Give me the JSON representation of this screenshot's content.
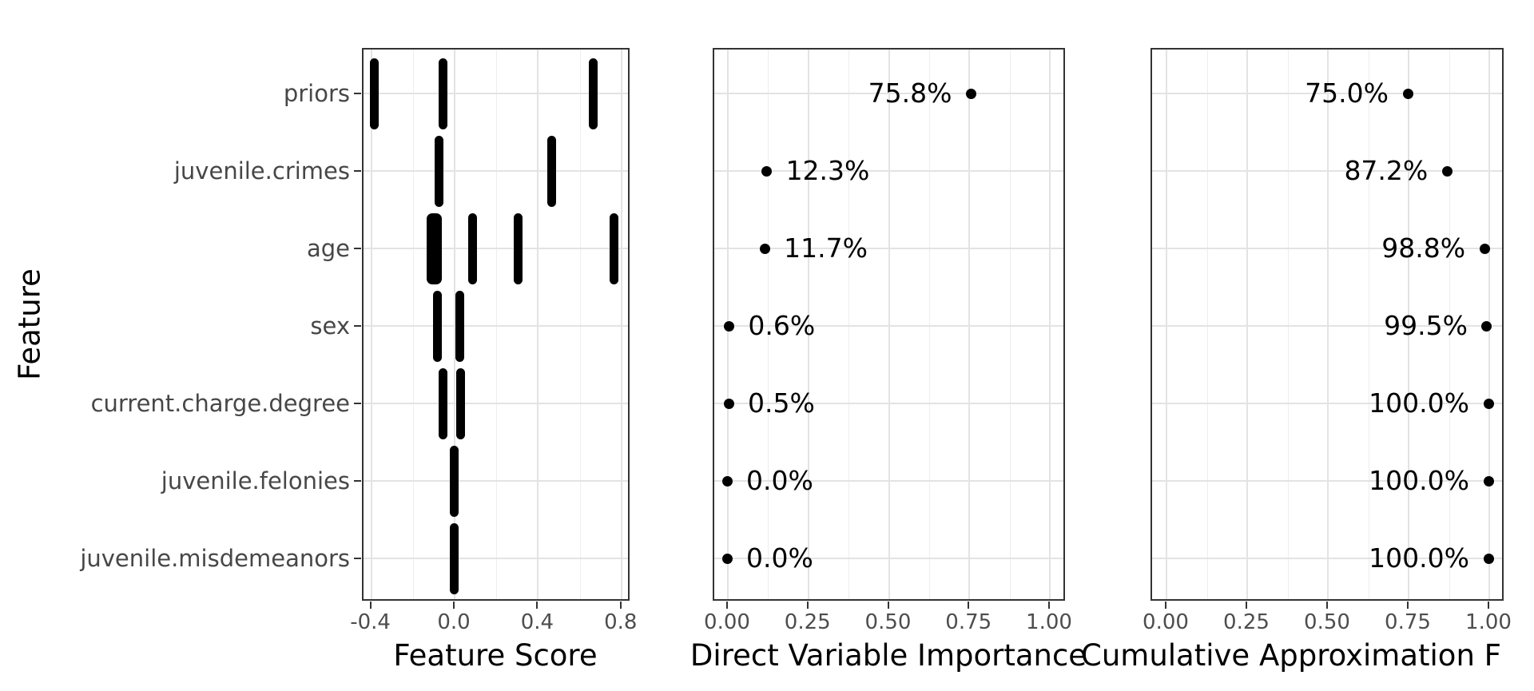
{
  "figure_type": "three-panel feature importance plot",
  "colors": {
    "background": "#ffffff",
    "panel_border": "#333333",
    "grid_major": "#e3e3e3",
    "grid_minor": "#ededed",
    "axis_text": "#4d4d4d",
    "title_text": "#000000",
    "data_marks": "#000000"
  },
  "chart_data": [
    {
      "type": "scatter",
      "title": "",
      "xlabel": "Feature Score",
      "ylabel": "Feature",
      "categories": [
        "priors",
        "juvenile.crimes",
        "age",
        "sex",
        "current.charge.degree",
        "juvenile.felonies",
        "juvenile.misdemeanors"
      ],
      "xlim": [
        -0.44,
        0.84
      ],
      "x_ticks": [
        -0.4,
        0.0,
        0.4,
        0.8
      ],
      "x_tick_labels": [
        "-0.4",
        "0.0",
        "0.4",
        "0.8"
      ],
      "x_minor_ticks": [
        -0.2,
        0.2,
        0.6
      ],
      "grid": true,
      "mark": "dense vertical strips of stacked points per feature at each distinct feature-score value",
      "strips": [
        {
          "feature": "priors",
          "points": [
            {
              "x": -0.38
            },
            {
              "x": -0.05
            },
            {
              "x": 0.67
            }
          ]
        },
        {
          "feature": "juvenile.crimes",
          "points": [
            {
              "x": -0.07
            },
            {
              "x": 0.47
            }
          ]
        },
        {
          "feature": "age",
          "points": [
            {
              "x": -0.095,
              "double": true
            },
            {
              "x": 0.09
            },
            {
              "x": 0.31
            },
            {
              "x": 0.77
            }
          ]
        },
        {
          "feature": "sex",
          "points": [
            {
              "x": -0.08
            },
            {
              "x": 0.027
            }
          ]
        },
        {
          "feature": "current.charge.degree",
          "points": [
            {
              "x": -0.05
            },
            {
              "x": 0.034
            }
          ]
        },
        {
          "feature": "juvenile.felonies",
          "points": [
            {
              "x": 0.0
            }
          ]
        },
        {
          "feature": "juvenile.misdemeanors",
          "points": [
            {
              "x": 0.0
            }
          ]
        }
      ]
    },
    {
      "type": "scatter",
      "title": "",
      "xlabel": "Direct Variable Importance",
      "ylabel": "",
      "categories": [
        "priors",
        "juvenile.crimes",
        "age",
        "sex",
        "current.charge.degree",
        "juvenile.felonies",
        "juvenile.misdemeanors"
      ],
      "xlim": [
        -0.045,
        1.05
      ],
      "x_ticks": [
        0.0,
        0.25,
        0.5,
        0.75,
        1.0
      ],
      "x_tick_labels": [
        "0.00",
        "0.25",
        "0.50",
        "0.75",
        "1.00"
      ],
      "x_minor_ticks": [
        0.125,
        0.375,
        0.625,
        0.875
      ],
      "grid": true,
      "values": [
        0.758,
        0.123,
        0.117,
        0.006,
        0.005,
        0.0,
        0.0
      ],
      "point_labels": [
        "75.8%",
        "12.3%",
        "11.7%",
        "0.6%",
        "0.5%",
        "0.0%",
        "0.0%"
      ],
      "label_side": [
        "left",
        "right",
        "right",
        "right",
        "right",
        "right",
        "right"
      ]
    },
    {
      "type": "scatter",
      "title": "",
      "xlabel": "Cumulative Approximation F",
      "ylabel": "",
      "categories": [
        "priors",
        "juvenile.crimes",
        "age",
        "sex",
        "current.charge.degree",
        "juvenile.felonies",
        "juvenile.misdemeanors"
      ],
      "xlim": [
        -0.045,
        1.05
      ],
      "x_ticks": [
        0.0,
        0.25,
        0.5,
        0.75,
        1.0
      ],
      "x_tick_labels": [
        "0.00",
        "0.25",
        "0.50",
        "0.75",
        "1.00"
      ],
      "x_minor_ticks": [
        0.125,
        0.375,
        0.625,
        0.875
      ],
      "grid": true,
      "values": [
        0.75,
        0.872,
        0.988,
        0.995,
        1.0,
        1.0,
        1.0
      ],
      "point_labels": [
        "75.0%",
        "87.2%",
        "98.8%",
        "99.5%",
        "100.0%",
        "100.0%",
        "100.0%"
      ],
      "label_side": [
        "left",
        "left",
        "left",
        "left",
        "left",
        "left",
        "left"
      ]
    }
  ]
}
